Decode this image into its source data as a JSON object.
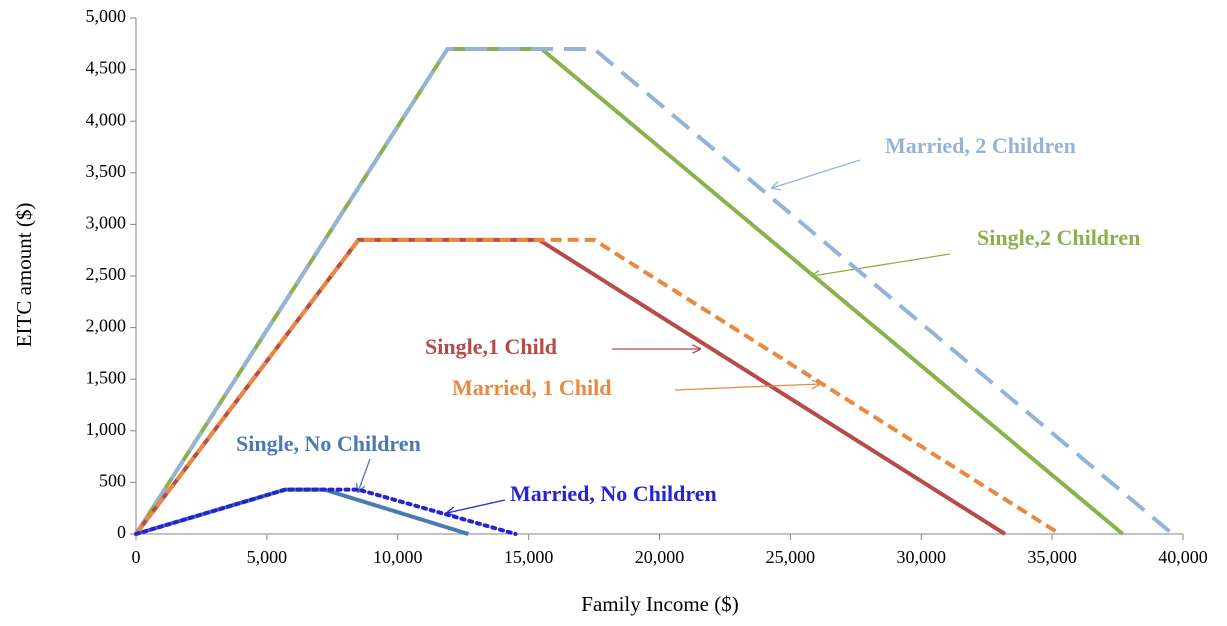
{
  "chart_data": {
    "type": "line",
    "x_label": "Family Income ($)",
    "y_label": "EITC amount ($)",
    "xlim": [
      0,
      40000
    ],
    "xticks": [
      0,
      {
        "value": 5000,
        "label": "5,000"
      },
      {
        "value": 10000,
        "label": "10,000"
      },
      {
        "value": 15000,
        "label": "15,000"
      },
      {
        "value": 20000,
        "label": "20,000"
      },
      {
        "value": 25000,
        "label": "25,000"
      },
      {
        "value": 30000,
        "label": "30,000"
      },
      {
        "value": 35000,
        "label": "35,000"
      },
      {
        "value": 40000,
        "label": "40,000"
      }
    ],
    "ylim": [
      0,
      5000
    ],
    "yticks": [
      0,
      500,
      {
        "value": 1000,
        "label": "1,000"
      },
      {
        "value": 1500,
        "label": "1,500"
      },
      {
        "value": 2000,
        "label": "2,000"
      },
      {
        "value": 2500,
        "label": "2,500"
      },
      {
        "value": 3000,
        "label": "3,000"
      },
      {
        "value": 3500,
        "label": "3,500"
      },
      {
        "value": 4000,
        "label": "4,000"
      },
      {
        "value": 4500,
        "label": "4,500"
      },
      {
        "value": 5000,
        "label": "5,000"
      }
    ],
    "grid": false,
    "series": [
      {
        "name": "Single,2 Children",
        "color": "#8cb04c",
        "style": "solid",
        "x": [
          0,
          11900,
          15500,
          37700
        ],
        "values": [
          0,
          4700,
          4700,
          0
        ]
      },
      {
        "name": "Married, 2 Children",
        "color": "#95b3d7",
        "style": "dashed",
        "x": [
          0,
          11900,
          17500,
          39600
        ],
        "values": [
          0,
          4700,
          4700,
          0
        ]
      },
      {
        "name": "Single,1 Child",
        "color": "#b84a47",
        "style": "solid",
        "x": [
          0,
          8500,
          15400,
          33200
        ],
        "values": [
          0,
          2850,
          2850,
          0
        ]
      },
      {
        "name": "Married, 1 Child",
        "color": "#e8893f",
        "style": "dashed-short",
        "x": [
          0,
          8500,
          17500,
          35300
        ],
        "values": [
          0,
          2850,
          2850,
          0
        ]
      },
      {
        "name": "Single, No Children",
        "color": "#4a7ab4",
        "style": "solid",
        "x": [
          0,
          5700,
          7200,
          12700
        ],
        "values": [
          0,
          430,
          430,
          0
        ]
      },
      {
        "name": "Married, No Children",
        "color": "#2424d0",
        "style": "dotted",
        "x": [
          0,
          5700,
          8500,
          14500
        ],
        "values": [
          0,
          430,
          430,
          0
        ]
      }
    ]
  }
}
